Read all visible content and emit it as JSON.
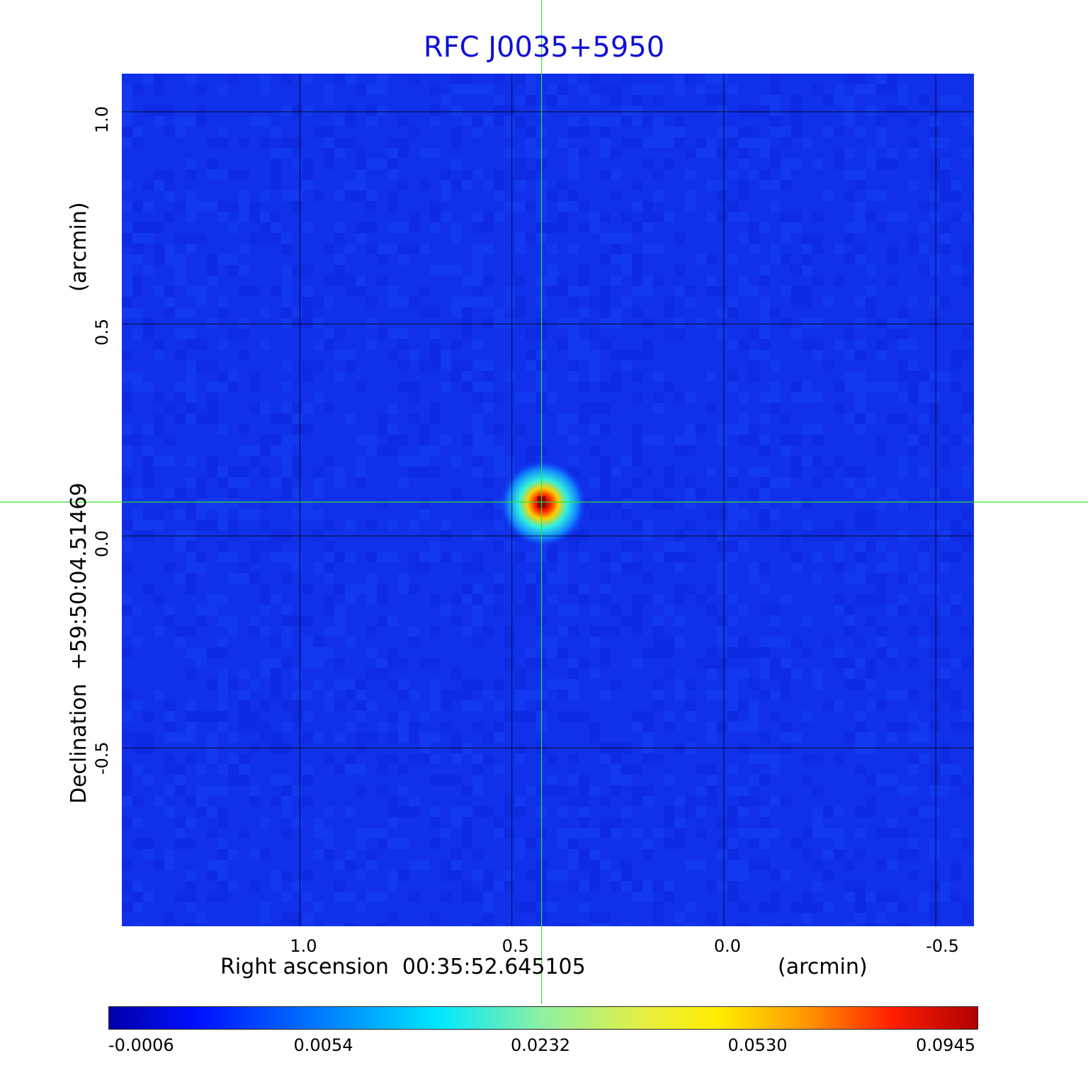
{
  "chart_data": {
    "type": "heatmap",
    "title": "RFC J0035+5950",
    "xlabel_main": "Right ascension  00:35:52.645105",
    "xlabel_unit": "(arcmin)",
    "ylabel_main": "Declination  +59:50:04.51469",
    "ylabel_unit": "(arcmin)",
    "x_ticks": [
      1.0,
      0.5,
      0.0,
      -0.5
    ],
    "x_tick_labels": [
      "1.0",
      "0.5",
      "0.0",
      "-0.5"
    ],
    "y_ticks": [
      1.0,
      0.5,
      0.0,
      -0.5
    ],
    "y_tick_labels": [
      "1.0",
      "0.5",
      "0.0",
      "-0.5"
    ],
    "xlim": [
      1.42,
      -0.59
    ],
    "ylim": [
      -0.92,
      1.09
    ],
    "x_reversed": true,
    "grid": true,
    "crosshair": {
      "x": 0.43,
      "y": 0.08,
      "color": "#33dd33"
    },
    "source_peak": {
      "x": 0.43,
      "y": 0.08,
      "value": 0.0945
    },
    "colormap": "jet",
    "colorbar": {
      "orientation": "horizontal",
      "placement": "bottom",
      "tick_labels": [
        "-0.0006",
        "0.0054",
        "0.0232",
        "0.0530",
        "0.0945"
      ],
      "tick_values": [
        -0.0006,
        0.0054,
        0.0232,
        0.053,
        0.0945
      ]
    }
  }
}
